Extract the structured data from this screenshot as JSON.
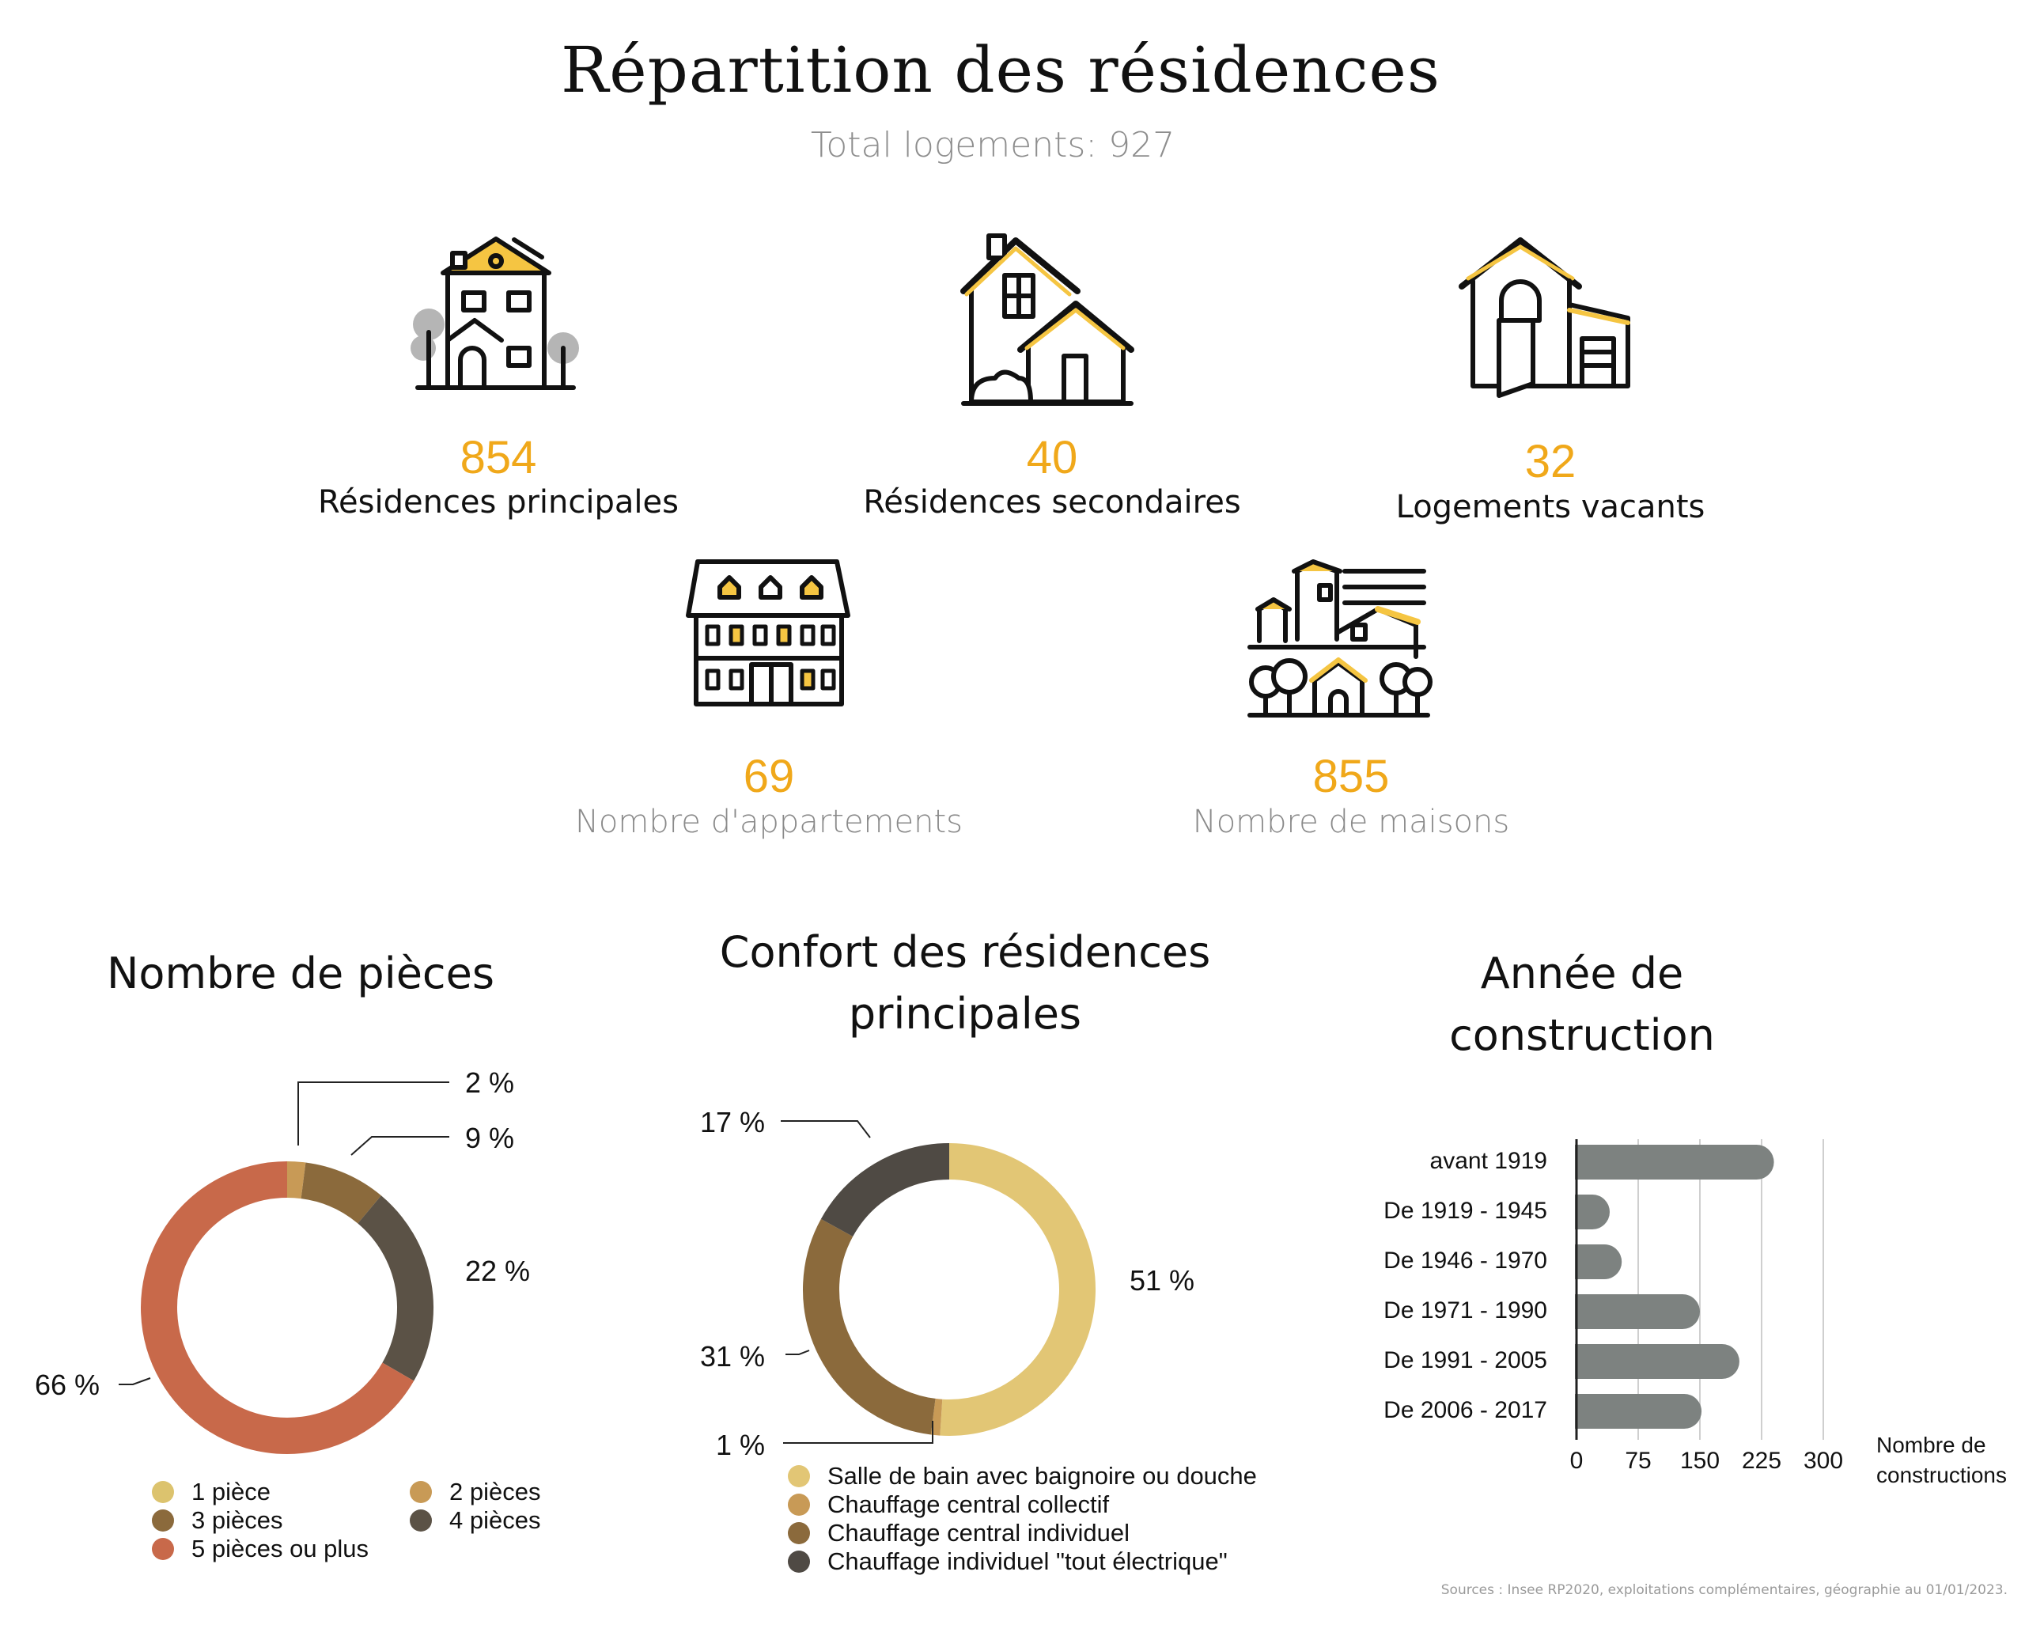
{
  "header": {
    "title": "Répartition des résidences",
    "subtitle": "Total logements: 927"
  },
  "stats": [
    {
      "value": "854",
      "label": "Résidences principales",
      "icon": "townhouse-icon"
    },
    {
      "value": "40",
      "label": "Résidences secondaires",
      "icon": "houses-icon"
    },
    {
      "value": "32",
      "label": "Logements vacants",
      "icon": "house-open-door-icon"
    },
    {
      "value": "69",
      "label": "Nombre d'appartements",
      "icon": "apartment-building-icon"
    },
    {
      "value": "855",
      "label": "Nombre de maisons",
      "icon": "village-icon"
    }
  ],
  "colors": {
    "accent": "#f0a81a",
    "icon_yellow": "#f5c542",
    "bar": "#7d8280"
  },
  "chart_data": [
    {
      "type": "pie",
      "title": "Nombre de pièces",
      "categories": [
        "1 pièce",
        "2 pièces",
        "3 pièces",
        "4 pièces",
        "5 pièces ou plus"
      ],
      "values": [
        0,
        2,
        9,
        22,
        66
      ],
      "labels": [
        "",
        "2 %",
        "9 %",
        "22 %",
        "66 %"
      ],
      "colors": [
        "#dcc36e",
        "#c89a56",
        "#8b6a3c",
        "#5b5246",
        "#c8694a"
      ],
      "legend": "bottom"
    },
    {
      "type": "pie",
      "title": "Confort des résidences principales",
      "categories": [
        "Salle de bain avec baignoire ou douche",
        "Chauffage central collectif",
        "Chauffage central individuel",
        "Chauffage individuel \"tout électrique\""
      ],
      "values": [
        51,
        1,
        31,
        17
      ],
      "labels": [
        "51 %",
        "1 %",
        "31 %",
        "17 %"
      ],
      "colors": [
        "#e2c675",
        "#c89a56",
        "#8b6a3c",
        "#4f4a44"
      ],
      "legend": "bottom"
    },
    {
      "type": "bar",
      "orientation": "horizontal",
      "title": "Année de construction",
      "categories": [
        "avant 1919",
        "De 1919 - 1945",
        "De 1946 - 1970",
        "De 1971 - 1990",
        "De 1991 - 2005",
        "De 2006 - 2017"
      ],
      "values": [
        240,
        25,
        55,
        150,
        198,
        152
      ],
      "xlabel": "Nombre de constructions",
      "xlim": [
        0,
        300
      ],
      "xticks": [
        "0",
        "75",
        "150",
        "225",
        "300"
      ],
      "grid": true
    }
  ],
  "sources": "Sources : Insee RP2020, exploitations complémentaires, géographie au 01/01/2023."
}
